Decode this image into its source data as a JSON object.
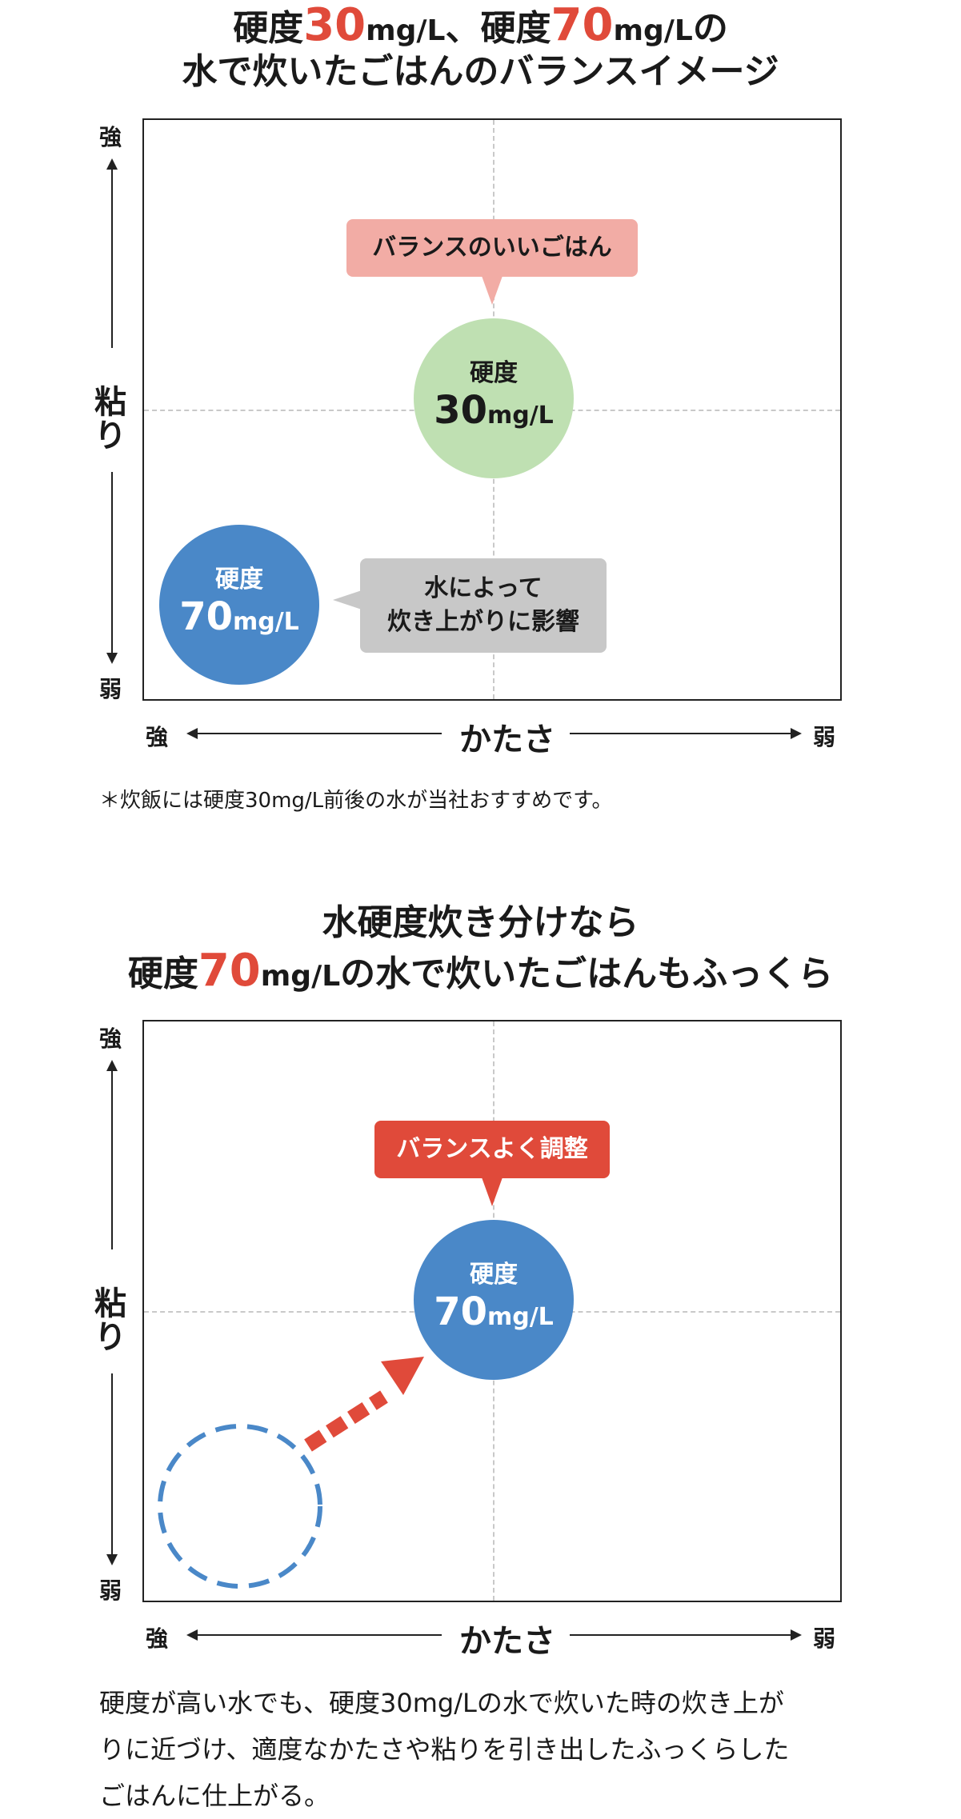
{
  "chart1": {
    "title_l1_p1": "硬度",
    "title_l1_h1": "30",
    "title_l1_u1": "mg/L",
    "title_l1_sep": "、硬度",
    "title_l1_h2": "70",
    "title_l1_u2": "mg/L",
    "title_l1_tail": "の",
    "title_l2": "水で炊いたごはんのバランスイメージ",
    "y_top": "強",
    "y_mid_1": "粘",
    "y_mid_2": "り",
    "y_bottom": "弱",
    "x_left": "強",
    "x_mid": "かたさ",
    "x_right": "弱",
    "callout_top": "バランスのいいごはん",
    "circle_green_label": "硬度",
    "circle_green_num": "30",
    "circle_green_unit": "mg/L",
    "circle_blue_label": "硬度",
    "circle_blue_num": "70",
    "circle_blue_unit": "mg/L",
    "callout_gray_l1": "水によって",
    "callout_gray_l2": "炊き上がりに影響",
    "note": "＊炊飯には硬度30mg/L前後の水が当社おすすめです。"
  },
  "chart2": {
    "title_l1": "水硬度炊き分けなら",
    "title_l2_p1": "硬度",
    "title_l2_h": "70",
    "title_l2_u": "mg/L",
    "title_l2_tail": "の水で炊いたごはんもふっくら",
    "y_top": "強",
    "y_mid_1": "粘",
    "y_mid_2": "り",
    "y_bottom": "弱",
    "x_left": "強",
    "x_mid": "かたさ",
    "x_right": "弱",
    "callout_top": "バランスよく調整",
    "circle_blue_label": "硬度",
    "circle_blue_num": "70",
    "circle_blue_unit": "mg/L"
  },
  "paragraph": {
    "line1": "硬度が高い水でも、硬度30mg/Lの水で炊いた時の炊き上が",
    "line2": "りに近づけ、適度なかたさや粘りを引き出したふっくらした",
    "line3": "ごはんに仕上がる。"
  },
  "colors": {
    "accent_red": "#e04a3a",
    "green_circle": "#bfe0b2",
    "blue_circle": "#4a88c8",
    "pink_callout": "#f2aca5",
    "gray_callout": "#c8c8c8",
    "red_callout": "#e04a3a"
  }
}
